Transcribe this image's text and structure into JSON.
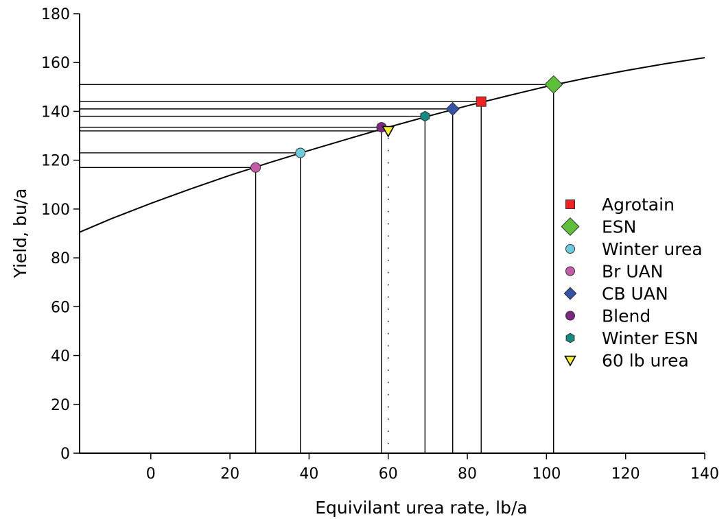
{
  "chart_data": {
    "type": "scatter",
    "xlabel": "Equivilant urea rate, lb/a",
    "ylabel": "Yield, bu/a",
    "xlim": [
      -18,
      140
    ],
    "ylim": [
      0,
      180
    ],
    "x_ticks": [
      0,
      20,
      40,
      60,
      80,
      100,
      120,
      140
    ],
    "y_ticks": [
      0,
      20,
      40,
      60,
      80,
      100,
      120,
      140,
      160,
      180
    ],
    "grid": false,
    "legend_position": "right",
    "curve": {
      "x": [
        -18,
        -10,
        0,
        10,
        20,
        30,
        40,
        50,
        60,
        70,
        80,
        90,
        100,
        110,
        120,
        130,
        140
      ],
      "y": [
        90.5,
        96.0,
        102.3,
        108.2,
        113.8,
        119.0,
        124.0,
        128.8,
        133.5,
        138.0,
        142.3,
        146.3,
        150.2,
        153.6,
        156.7,
        159.5,
        162.0
      ]
    },
    "series": [
      {
        "name": "Agrotain",
        "x": 83.5,
        "y": 144,
        "marker": "square",
        "color": "#ee2222"
      },
      {
        "name": "ESN",
        "x": 101.8,
        "y": 151,
        "marker": "diamond",
        "color": "#5ebf3a"
      },
      {
        "name": "Winter urea",
        "x": 37.8,
        "y": 123,
        "marker": "circle",
        "color": "#6ccbdc"
      },
      {
        "name": "Br UAN",
        "x": 26.5,
        "y": 117,
        "marker": "circle",
        "color": "#c55aa6"
      },
      {
        "name": "CB UAN",
        "x": 76.3,
        "y": 141,
        "marker": "diamond",
        "color": "#3553a4"
      },
      {
        "name": "Blend",
        "x": 58.3,
        "y": 133.5,
        "marker": "circle",
        "color": "#7c2a80"
      },
      {
        "name": "Winter ESN",
        "x": 69.3,
        "y": 138,
        "marker": "hexagon",
        "color": "#148a82"
      },
      {
        "name": "60 lb urea",
        "x": 60,
        "y": 132,
        "marker": "triangle-down",
        "color": "#f7ee3a"
      }
    ]
  }
}
